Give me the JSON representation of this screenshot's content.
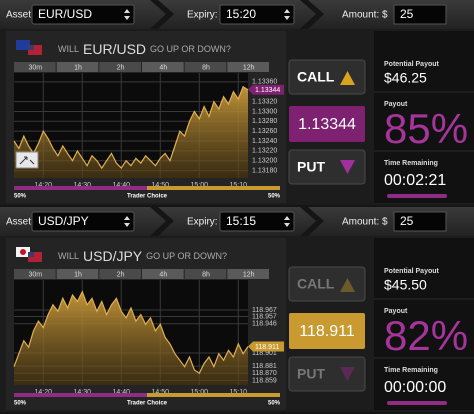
{
  "panels": [
    {
      "asset_label": "Asset:",
      "asset": "EUR/USD",
      "expiry_label": "Expiry:",
      "expiry": "15:20",
      "amount_label": "Amount: $",
      "amount": "25",
      "question": {
        "prefix": "WILL",
        "pair": "EUR/USD",
        "suffix": "GO UP OR DOWN?"
      },
      "timeframes": [
        "30m",
        "1h",
        "2h",
        "4h",
        "8h",
        "12h"
      ],
      "chart": {
        "type": "area",
        "color": "#e0b050",
        "values": [
          1.1324,
          1.13225,
          1.1325,
          1.1323,
          1.13215,
          1.13235,
          1.1326,
          1.13245,
          1.13225,
          1.1321,
          1.1323,
          1.13215,
          1.132,
          1.1322,
          1.13205,
          1.1319,
          1.1321,
          1.132,
          1.13185,
          1.132,
          1.13215,
          1.13195,
          1.13185,
          1.132,
          1.1319,
          1.13205,
          1.13195,
          1.1321,
          1.132,
          1.1319,
          1.13205,
          1.13215,
          1.132,
          1.1323,
          1.1326,
          1.1325,
          1.1328,
          1.133,
          1.13285,
          1.1331,
          1.1329,
          1.1332,
          1.13305,
          1.1333,
          1.13315,
          1.1334,
          1.13325,
          1.1335,
          1.13344
        ],
        "xlim": [
          0,
          48
        ],
        "xticks": [
          {
            "value": 6,
            "label": "14:20"
          },
          {
            "value": 14,
            "label": "14:30"
          },
          {
            "value": 22,
            "label": "14:40"
          },
          {
            "value": 30,
            "label": "14:50"
          },
          {
            "value": 38,
            "label": "15:00"
          },
          {
            "value": 46,
            "label": "15:10"
          }
        ],
        "ylim": [
          1.13165,
          1.13378
        ],
        "yticks": [
          {
            "value": 1.1336,
            "label": "1.13360"
          },
          {
            "value": 1.1332,
            "label": "1.13320"
          },
          {
            "value": 1.133,
            "label": "1.13300"
          },
          {
            "value": 1.1328,
            "label": "1.13280"
          },
          {
            "value": 1.1326,
            "label": "1.13260"
          },
          {
            "value": 1.1324,
            "label": "1.13240"
          },
          {
            "value": 1.1322,
            "label": "1.13220"
          },
          {
            "value": 1.132,
            "label": "1.13200"
          },
          {
            "value": 1.1318,
            "label": "1.13180"
          }
        ],
        "grid": true
      },
      "price": "1.13344",
      "price_color": "#7d2170",
      "trader_choice": {
        "label": "Trader Choice",
        "left": {
          "value": 50,
          "label": "50%"
        },
        "right": {
          "value": 50,
          "label": "50%"
        }
      },
      "call": "CALL",
      "put": "PUT",
      "active": true,
      "potential_payout_label": "Potential Payout",
      "potential_payout": "$46.25",
      "payout_label": "Payout",
      "payout": "85%",
      "time_label": "Time Remaining",
      "time": "00:02:21"
    },
    {
      "asset_label": "Asset:",
      "asset": "USD/JPY",
      "expiry_label": "Expiry:",
      "expiry": "15:15",
      "amount_label": "Amount: $",
      "amount": "25",
      "question": {
        "prefix": "WILL",
        "pair": "USD/JPY",
        "suffix": "GO UP OR DOWN?"
      },
      "timeframes": [
        "30m",
        "1h",
        "2h",
        "4h",
        "8h",
        "12h"
      ],
      "chart": {
        "type": "area",
        "color": "#e0b050",
        "values": [
          118.88,
          118.9,
          118.92,
          118.91,
          118.935,
          118.95,
          118.94,
          118.96,
          118.975,
          118.965,
          118.985,
          118.97,
          118.99,
          118.98,
          118.995,
          118.975,
          118.985,
          118.965,
          118.98,
          118.96,
          118.975,
          118.985,
          118.965,
          118.955,
          118.97,
          118.95,
          118.96,
          118.945,
          118.955,
          118.935,
          118.945,
          118.925,
          118.915,
          118.9,
          118.89,
          118.88,
          118.895,
          118.875,
          118.87,
          118.885,
          118.895,
          118.88,
          118.9,
          118.89,
          118.905,
          118.895,
          118.915,
          118.9,
          118.911
        ],
        "xlim": [
          0,
          48
        ],
        "xticks": [
          {
            "value": 6,
            "label": "14:20"
          },
          {
            "value": 14,
            "label": "14:30"
          },
          {
            "value": 22,
            "label": "14:40"
          },
          {
            "value": 30,
            "label": "14:50"
          },
          {
            "value": 38,
            "label": "15:00"
          },
          {
            "value": 46,
            "label": "15:10"
          }
        ],
        "ylim": [
          118.852,
          119.013
        ],
        "yticks": [
          118.967,
          118.957,
          118.946,
          118.901,
          118.881,
          {
            "value": 118.87,
            "label": "118.870"
          },
          118.859
        ],
        "grid": true
      },
      "price": "118.911",
      "price_color": "#c89a30",
      "trader_choice": {
        "label": "Trader Choice",
        "left": {
          "value": 50,
          "label": "50%"
        },
        "right": {
          "value": 50,
          "label": "50%"
        }
      },
      "call": "CALL",
      "put": "PUT",
      "active": false,
      "potential_payout_label": "Potential Payout",
      "potential_payout": "$45.50",
      "payout_label": "Payout",
      "payout": "82%",
      "time_label": "Time Remaining",
      "time": "00:00:00"
    }
  ]
}
